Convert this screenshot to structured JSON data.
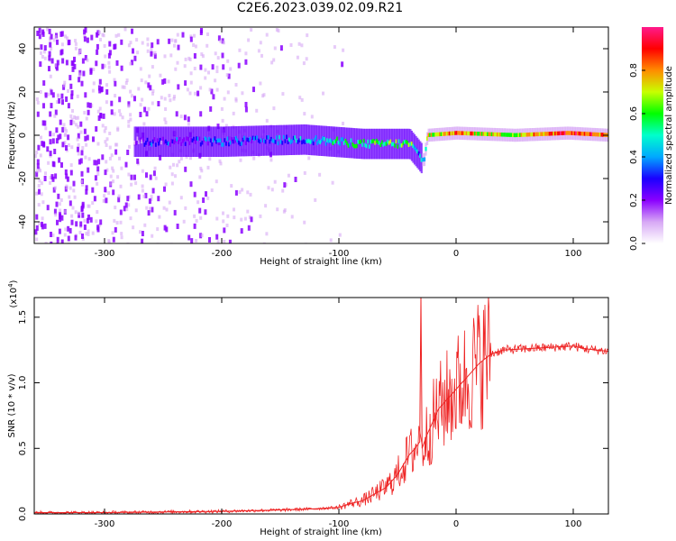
{
  "title": "C2E6.2023.039.02.09.R21",
  "chart_data": [
    {
      "type": "heatmap",
      "xlabel": "Height of straight line (km)",
      "ylabel": "Frequency (Hz)",
      "xlim": [
        -360,
        130
      ],
      "ylim": [
        -50,
        50
      ],
      "x_ticks": [
        -300,
        -200,
        -100,
        0,
        100
      ],
      "y_ticks": [
        -40,
        -20,
        0,
        20,
        40
      ],
      "colorbar": {
        "label": "Normalized spectral amplitude",
        "range": [
          0.0,
          1.0
        ],
        "ticks": [
          "0.0",
          "0.2",
          "0.4",
          "0.6",
          "0.8"
        ],
        "colors": [
          "#ffffff",
          "#d7a8f5",
          "#8a00ff",
          "#1a00ff",
          "#00a8ff",
          "#00ffcc",
          "#00ff00",
          "#c8ff00",
          "#ff8c00",
          "#ff0000",
          "#ff1a8c"
        ]
      },
      "ridge": [
        {
          "x": -270,
          "freq": -3,
          "amp": 0.25
        },
        {
          "x": -200,
          "freq": -3,
          "amp": 0.3
        },
        {
          "x": -130,
          "freq": -2,
          "amp": 0.4
        },
        {
          "x": -80,
          "freq": -4,
          "amp": 0.55
        },
        {
          "x": -40,
          "freq": -4,
          "amp": 0.6
        },
        {
          "x": -28,
          "freq": -12,
          "amp": 0.3
        },
        {
          "x": -25,
          "freq": 0,
          "amp": 0.7
        },
        {
          "x": 0,
          "freq": 1,
          "amp": 0.8
        },
        {
          "x": 50,
          "freq": 0,
          "amp": 0.65
        },
        {
          "x": 95,
          "freq": 1,
          "amp": 0.95
        },
        {
          "x": 130,
          "freq": 0,
          "amp": 0.8
        }
      ]
    },
    {
      "type": "line",
      "xlabel": "Height of straight line (km)",
      "ylabel": "SNR (10 * v/v)",
      "y_scale_label": "(x10",
      "y_scale_exp": "4",
      "y_scale_close": ")",
      "xlim": [
        -360,
        130
      ],
      "ylim": [
        0,
        1.65
      ],
      "x_ticks": [
        -300,
        -200,
        -100,
        0,
        100
      ],
      "y_ticks": [
        "0.0",
        "0.5",
        "1.0",
        "1.5"
      ],
      "series": [
        {
          "color": "#ee2222",
          "x": [
            -360,
            -300,
            -250,
            -200,
            -150,
            -120,
            -100,
            -90,
            -80,
            -70,
            -60,
            -50,
            -40,
            -35,
            -31,
            -30,
            -29,
            -25,
            -20,
            -15,
            -10,
            -5,
            0,
            5,
            10,
            20,
            30,
            40,
            60,
            80,
            100,
            110,
            120,
            130
          ],
          "y": [
            0.01,
            0.01,
            0.015,
            0.02,
            0.03,
            0.04,
            0.05,
            0.08,
            0.1,
            0.15,
            0.2,
            0.3,
            0.45,
            0.5,
            0.55,
            1.65,
            0.5,
            0.6,
            0.7,
            0.8,
            0.85,
            0.9,
            0.95,
            1.0,
            1.05,
            1.15,
            1.22,
            1.25,
            1.26,
            1.27,
            1.28,
            1.26,
            1.25,
            1.24
          ]
        }
      ]
    }
  ]
}
